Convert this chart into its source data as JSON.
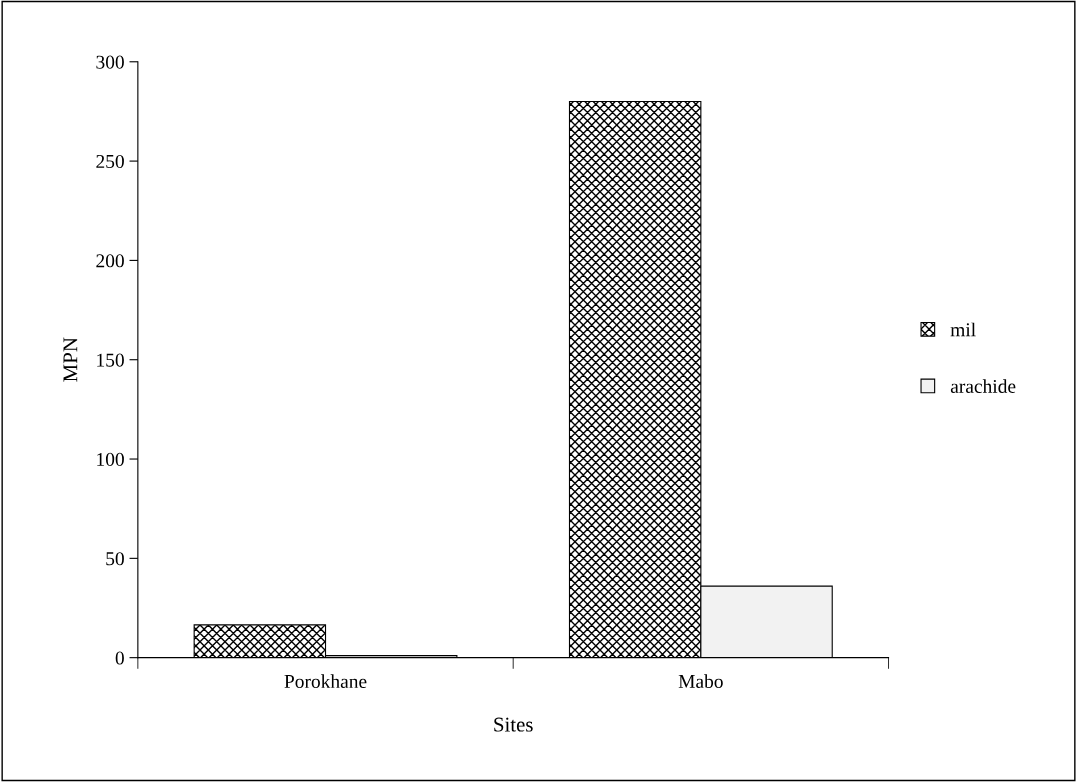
{
  "chart_data": {
    "type": "bar",
    "xlabel": "Sites",
    "ylabel": "MPN",
    "categories": [
      "Porokhane",
      "Mabo"
    ],
    "series": [
      {
        "name": "mil",
        "color": "#000000",
        "values": [
          16.5,
          280
        ]
      },
      {
        "name": "arachide",
        "color": "#f2f2f2",
        "values": [
          1,
          36
        ]
      }
    ],
    "ylim": [
      0,
      300
    ],
    "yticks": [
      0,
      50,
      100,
      150,
      200,
      250,
      300
    ],
    "grid": false,
    "legend": "right"
  }
}
